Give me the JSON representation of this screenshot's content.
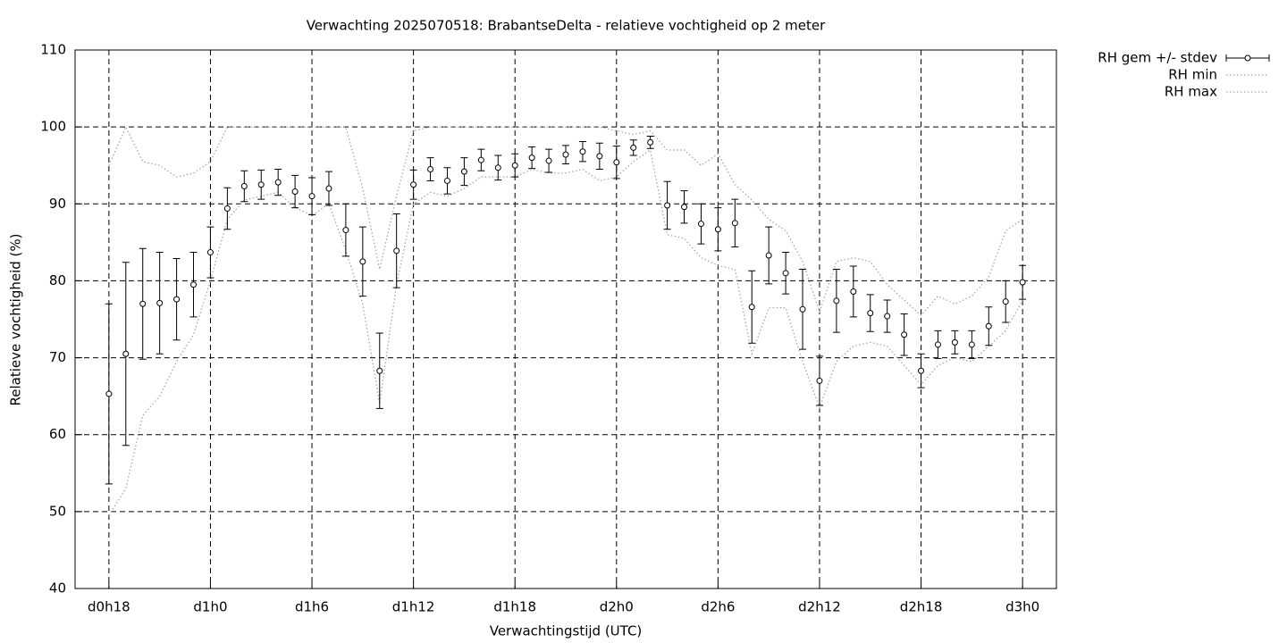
{
  "chart_data": {
    "type": "line",
    "title": "Verwachting 2025070518: BrabantseDelta - relatieve vochtigheid op 2 meter",
    "x_label": "Verwachtingstijd (UTC)",
    "y_label": "Relatieve vochtigheid (%)",
    "x": [
      18,
      19,
      20,
      21,
      22,
      23,
      24,
      25,
      26,
      27,
      28,
      29,
      30,
      31,
      32,
      33,
      34,
      35,
      36,
      37,
      38,
      39,
      40,
      41,
      42,
      43,
      44,
      45,
      46,
      47,
      48,
      49,
      50,
      51,
      52,
      53,
      54,
      55,
      56,
      57,
      58,
      59,
      60,
      61,
      62,
      63,
      64,
      65,
      66,
      67,
      68,
      69,
      70,
      71,
      72
    ],
    "series": [
      {
        "name": "RH gem +/- stdev",
        "color": "#000000",
        "style": "errorbars",
        "values": [
          65.3,
          70.5,
          77,
          77.1,
          77.6,
          79.5,
          83.7,
          89.4,
          92.3,
          92.5,
          92.8,
          91.6,
          91,
          92,
          86.6,
          82.5,
          68.3,
          83.9,
          92.5,
          94.5,
          93,
          94.2,
          95.7,
          94.7,
          95,
          96,
          95.6,
          96.4,
          96.8,
          96.2,
          95.4,
          97.3,
          98,
          89.8,
          89.6,
          87.4,
          86.7,
          87.5,
          76.6,
          83.3,
          81,
          76.3,
          67,
          77.4,
          78.6,
          75.8,
          75.4,
          73,
          68.3,
          71.7,
          72,
          71.7,
          74.1,
          77.3,
          79.8
        ],
        "errors": [
          11.7,
          11.9,
          7.2,
          6.6,
          5.3,
          4.2,
          3.3,
          2.7,
          2,
          1.9,
          1.7,
          2.1,
          2.4,
          2.2,
          3.4,
          4.5,
          4.9,
          4.8,
          1.9,
          1.5,
          1.7,
          1.8,
          1.4,
          1.6,
          1.5,
          1.4,
          1.5,
          1.2,
          1.3,
          1.7,
          2.1,
          1,
          0.8,
          3.1,
          2.1,
          2.6,
          2.8,
          3.1,
          4.7,
          3.7,
          2.7,
          5.2,
          3.2,
          4.1,
          3.3,
          2.4,
          2.1,
          2.7,
          2.2,
          1.8,
          1.5,
          1.8,
          2.5,
          2.7,
          2.2
        ]
      },
      {
        "name": "RH min",
        "color": "#a0a0a0",
        "style": "dotted",
        "values": [
          49.5,
          53,
          62.5,
          65,
          69.5,
          73,
          80,
          88,
          90.5,
          91,
          91.5,
          89.5,
          88.5,
          90,
          84,
          77,
          64,
          79.5,
          90,
          91.5,
          91,
          92,
          93.5,
          93.5,
          93.5,
          94.5,
          94,
          94,
          94.5,
          93,
          93.5,
          95.5,
          97,
          86,
          85.5,
          83,
          82,
          81.5,
          70.5,
          76.5,
          76.5,
          69.5,
          63.5,
          69.5,
          71.5,
          72,
          71.5,
          69,
          66.5,
          69,
          70,
          69.5,
          71.5,
          73.5,
          77.5
        ]
      },
      {
        "name": "RH max",
        "color": "#a0a0a0",
        "style": "dotted",
        "values": [
          95,
          100,
          95.5,
          95,
          93.5,
          94,
          95.5,
          100,
          100,
          100,
          100,
          100,
          100,
          100,
          100,
          92,
          81.5,
          91,
          99.5,
          100,
          100,
          100,
          100,
          100,
          100,
          100,
          100,
          100,
          100,
          100,
          99.5,
          99,
          99.5,
          97,
          97,
          95,
          96.5,
          92.5,
          90.5,
          88,
          86.5,
          82.5,
          76,
          82.5,
          83,
          82.5,
          79.5,
          77.5,
          75.5,
          78,
          77,
          78,
          80.5,
          86.5,
          88
        ]
      }
    ],
    "xlim": [
      16,
      74
    ],
    "xticks": [
      {
        "value": 18,
        "label": "d0h18"
      },
      {
        "value": 24,
        "label": "d1h0"
      },
      {
        "value": 30,
        "label": "d1h6"
      },
      {
        "value": 36,
        "label": "d1h12"
      },
      {
        "value": 42,
        "label": "d1h18"
      },
      {
        "value": 48,
        "label": "d2h0"
      },
      {
        "value": 54,
        "label": "d2h6"
      },
      {
        "value": 60,
        "label": "d2h12"
      },
      {
        "value": 66,
        "label": "d2h18"
      },
      {
        "value": 72,
        "label": "d3h0"
      }
    ],
    "ylim": [
      40,
      110
    ],
    "yticks": [
      40,
      50,
      60,
      70,
      80,
      90,
      100,
      110
    ],
    "grid": true,
    "legend": "outside-top-right"
  }
}
